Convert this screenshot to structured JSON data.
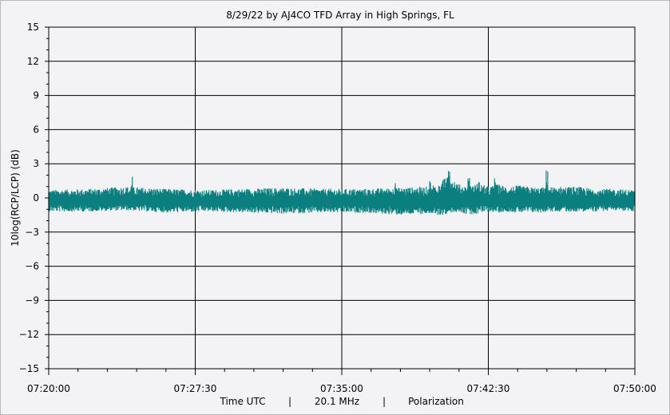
{
  "chart_data": {
    "type": "line",
    "title": "8/29/22  by  AJ4CO TFD Array  in  High Springs, FL",
    "ylabel": "10log(RCP/LCP) (dB)",
    "xlabel_parts": [
      "Time UTC",
      "|",
      "20.1 MHz",
      "|",
      "Polarization"
    ],
    "ylim": [
      -15,
      15
    ],
    "yticks": [
      15,
      12,
      9,
      6,
      3,
      0,
      -3,
      -6,
      -9,
      -12,
      -15
    ],
    "ytick_labels": [
      "15",
      "12",
      "9",
      "6",
      "3",
      "0",
      "−3",
      "−6",
      "−9",
      "−12",
      "−15"
    ],
    "xlim_seconds": [
      0,
      1800
    ],
    "xticks": [
      {
        "label": "07:20:00",
        "t": 0
      },
      {
        "label": "07:27:30",
        "t": 450
      },
      {
        "label": "07:35:00",
        "t": 900
      },
      {
        "label": "07:42:30",
        "t": 1350
      },
      {
        "label": "07:50:00",
        "t": 1800
      }
    ],
    "grid": true,
    "series": [
      {
        "color": "#0a7f7f",
        "baseline_db": -0.3,
        "noise_band_db": [
          -1.2,
          0.9
        ],
        "envelope_x": [
          "07:20:00",
          "07:22:00",
          "07:24:00",
          "07:26:00",
          "07:28:00",
          "07:30:00",
          "07:32:00",
          "07:34:00",
          "07:36:00",
          "07:38:00",
          "07:39:30",
          "07:40:00",
          "07:40:30",
          "07:41:00",
          "07:41:30",
          "07:42:00",
          "07:42:30",
          "07:43:00",
          "07:43:30",
          "07:44:00",
          "07:45:00",
          "07:46:00",
          "07:47:00",
          "07:48:00",
          "07:49:00",
          "07:50:00"
        ],
        "envelope_max_db": [
          0.7,
          0.8,
          1.0,
          0.8,
          0.7,
          0.8,
          0.9,
          0.8,
          0.8,
          0.9,
          1.0,
          1.6,
          2.1,
          1.2,
          1.0,
          1.3,
          1.0,
          1.2,
          1.0,
          1.1,
          0.9,
          1.0,
          1.0,
          0.8,
          0.8,
          0.7
        ],
        "envelope_min_db": [
          -1.2,
          -1.2,
          -1.1,
          -1.3,
          -1.2,
          -1.3,
          -1.4,
          -1.3,
          -1.3,
          -1.5,
          -1.4,
          -1.6,
          -1.3,
          -1.2,
          -1.5,
          -1.4,
          -1.2,
          -1.3,
          -1.2,
          -1.3,
          -1.3,
          -1.2,
          -1.2,
          -1.2,
          -1.1,
          -1.2
        ],
        "spikes": [
          {
            "t": "07:24:15",
            "db": 2.0
          },
          {
            "t": "07:37:45",
            "db": 2.1
          },
          {
            "t": "07:39:30",
            "db": 1.6
          },
          {
            "t": "07:40:30",
            "db": 3.2
          },
          {
            "t": "07:41:30",
            "db": 1.9
          },
          {
            "t": "07:42:00",
            "db": 1.7
          },
          {
            "t": "07:42:50",
            "db": 2.4
          },
          {
            "t": "07:45:30",
            "db": 2.5
          }
        ]
      }
    ]
  }
}
